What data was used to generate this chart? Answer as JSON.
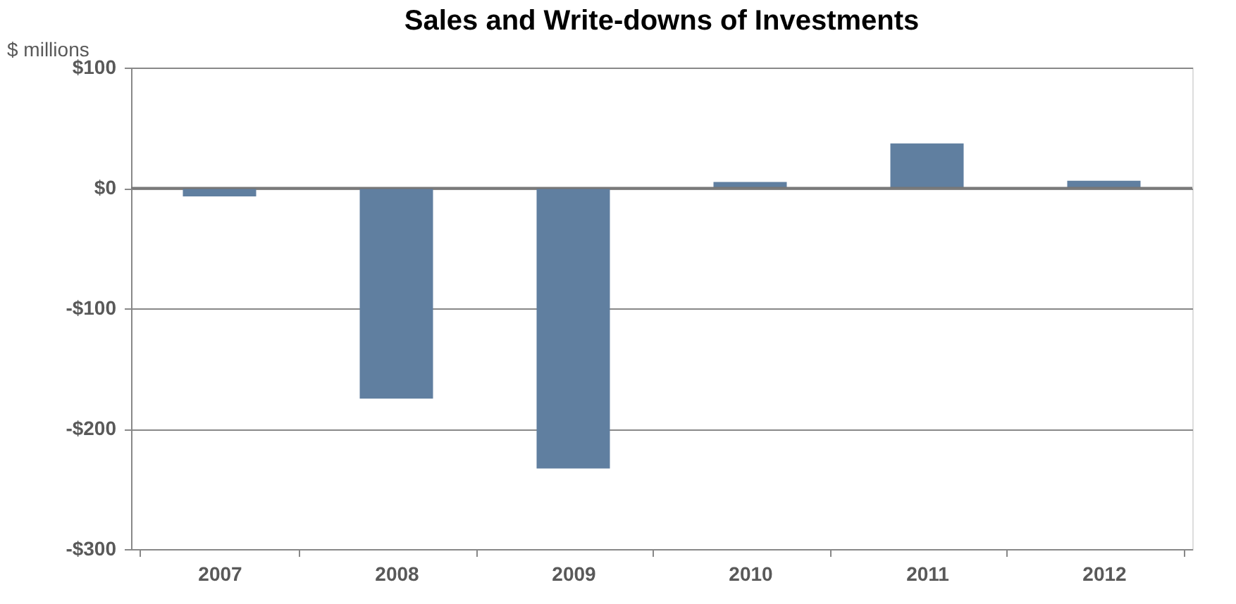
{
  "chart_data": {
    "type": "bar",
    "title": "Sales and Write-downs of Investments",
    "ylabel": "$ millions",
    "categories": [
      "2007",
      "2008",
      "2009",
      "2010",
      "2011",
      "2012"
    ],
    "values": [
      -7,
      -175,
      -233,
      5,
      37,
      6
    ],
    "color": "#607fa0",
    "ylim": [
      -300,
      100
    ],
    "yticks": [
      {
        "value": -300,
        "label": "-$300"
      },
      {
        "value": -200,
        "label": "-$200"
      },
      {
        "value": -100,
        "label": "-$100"
      },
      {
        "value": 0,
        "label": "$0"
      },
      {
        "value": 100,
        "label": "$100"
      }
    ],
    "grid": "y"
  }
}
